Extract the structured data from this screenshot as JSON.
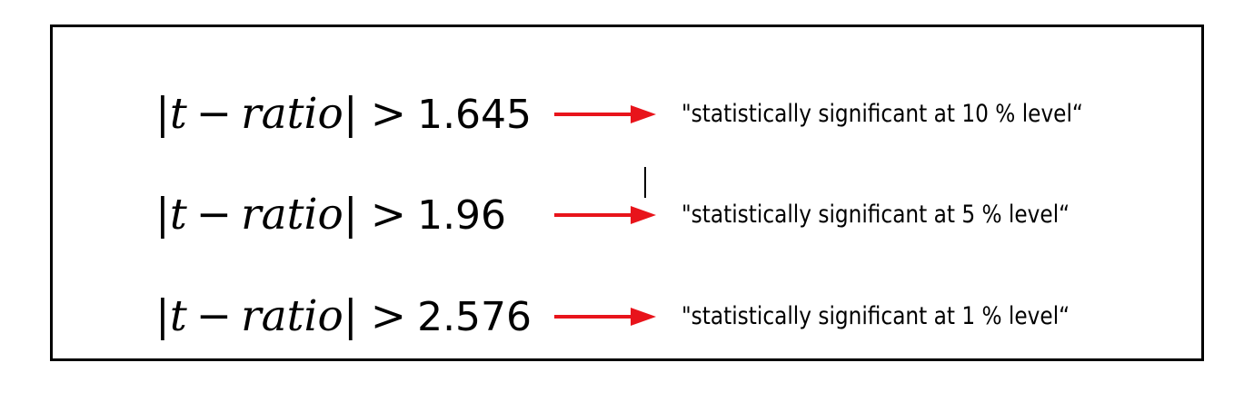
{
  "rows": [
    {
      "formula": {
        "bar_left": "|",
        "var": "t",
        "minus": "−",
        "word": "ratio",
        "bar_right": "|",
        "relation": ">",
        "threshold": "1.645"
      },
      "result": "\"statistically significant at 10 % level“"
    },
    {
      "formula": {
        "bar_left": "|",
        "var": "t",
        "minus": "−",
        "word": "ratio",
        "bar_right": "|",
        "relation": ">",
        "threshold": "1.96"
      },
      "result": "\"statistically significant at 5 % level“"
    },
    {
      "formula": {
        "bar_left": "|",
        "var": "t",
        "minus": "−",
        "word": "ratio",
        "bar_right": "|",
        "relation": ">",
        "threshold": "2.576"
      },
      "result": "\"statistically significant at 1 % level“"
    }
  ],
  "colors": {
    "arrow": "#e8141b",
    "border": "#000000",
    "text": "#000000"
  },
  "icons": {
    "arrow": "right-arrow-icon"
  }
}
